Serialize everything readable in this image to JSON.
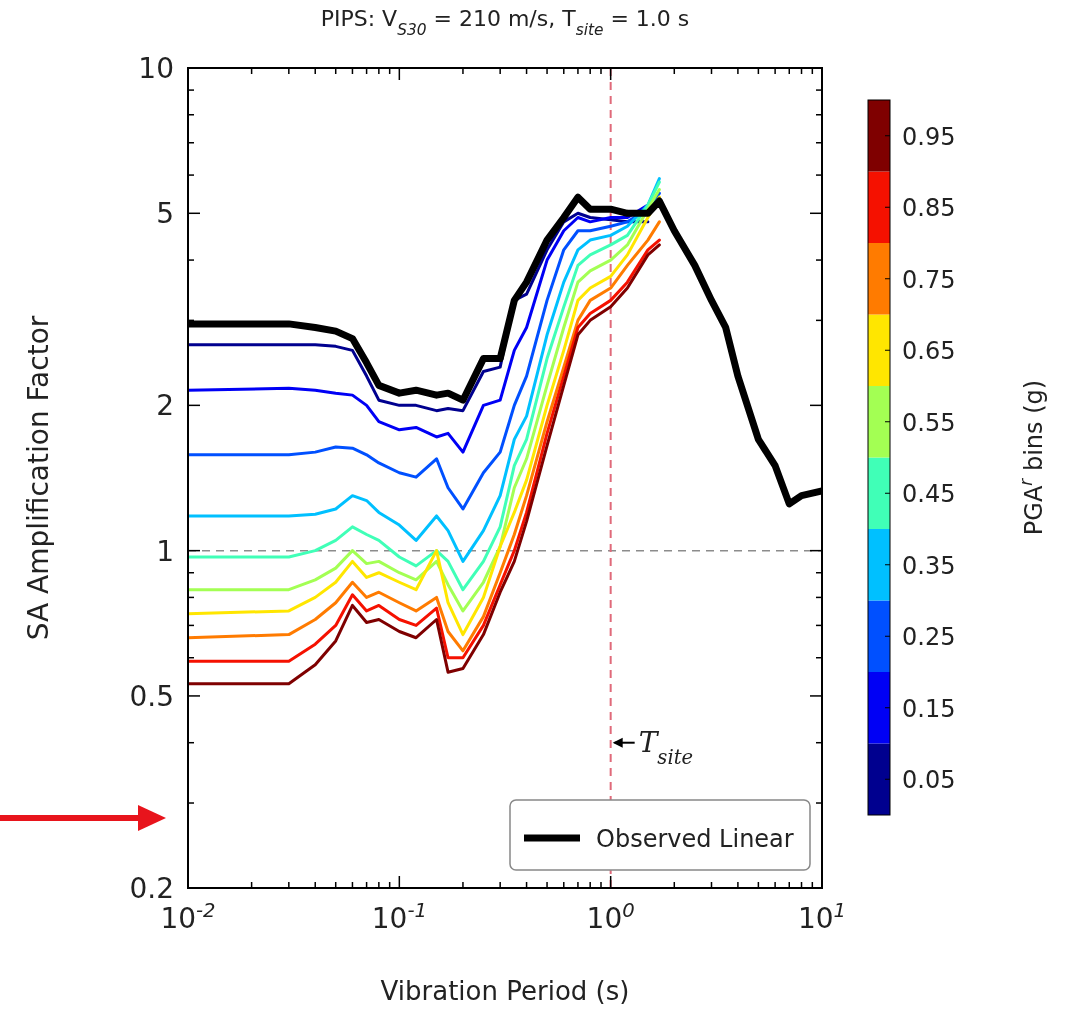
{
  "chart_data": {
    "type": "line",
    "title": "PIPS: V$_{S30}$ = 210 m/s, T$_{site}$ = 1.0 s",
    "xlabel": "Vibration Period (s)",
    "ylabel": "SA Amplification Factor",
    "clabel": "PGA$^{r}$ bins (g)",
    "log": "xy",
    "xlim": [
      0.01,
      10
    ],
    "ylim": [
      0.2,
      10
    ],
    "xticks": [
      {
        "value": 0.01,
        "label": "10$^{-2}$"
      },
      {
        "value": 0.02,
        "label": null
      },
      {
        "value": 0.03,
        "label": null
      },
      {
        "value": 0.04,
        "label": null
      },
      {
        "value": 0.05,
        "label": null
      },
      {
        "value": 0.06,
        "label": null
      },
      {
        "value": 0.07,
        "label": null
      },
      {
        "value": 0.08,
        "label": null
      },
      {
        "value": 0.09,
        "label": null
      },
      {
        "value": 0.1,
        "label": "10$^{-1}$"
      },
      {
        "value": 0.2,
        "label": null
      },
      {
        "value": 0.3,
        "label": null
      },
      {
        "value": 0.4,
        "label": null
      },
      {
        "value": 0.5,
        "label": null
      },
      {
        "value": 0.6,
        "label": null
      },
      {
        "value": 0.7,
        "label": null
      },
      {
        "value": 0.8,
        "label": null
      },
      {
        "value": 0.9,
        "label": null
      },
      {
        "value": 1,
        "label": "10$^{0}$"
      },
      {
        "value": 2,
        "label": null
      },
      {
        "value": 3,
        "label": null
      },
      {
        "value": 4,
        "label": null
      },
      {
        "value": 5,
        "label": null
      },
      {
        "value": 6,
        "label": null
      },
      {
        "value": 7,
        "label": null
      },
      {
        "value": 8,
        "label": null
      },
      {
        "value": 9,
        "label": null
      },
      {
        "value": 10,
        "label": "10$^{1}$"
      }
    ],
    "yticks": [
      0.2,
      {
        "value": 0.3,
        "label": null
      },
      {
        "value": 0.4,
        "label": null
      },
      0.5,
      {
        "value": 0.6,
        "label": null
      },
      {
        "value": 0.7,
        "label": null
      },
      {
        "value": 0.8,
        "label": null
      },
      {
        "value": 0.9,
        "label": null
      },
      1,
      2,
      {
        "value": 3,
        "label": null
      },
      {
        "value": 4,
        "label": null
      },
      5,
      {
        "value": 6,
        "label": null
      },
      {
        "value": 7,
        "label": null
      },
      {
        "value": 8,
        "label": null
      },
      {
        "value": 9,
        "label": null
      },
      10
    ],
    "clim": [
      0,
      1
    ],
    "cticks": [
      0.05,
      0.15,
      0.25,
      0.35,
      0.45,
      0.55,
      0.65,
      0.75,
      0.85,
      0.95
    ],
    "x": [
      0.01,
      0.03,
      0.04,
      0.05,
      0.06,
      0.07,
      0.08,
      0.1,
      0.12,
      0.15,
      0.17,
      0.2,
      0.25,
      0.3,
      0.35,
      0.4,
      0.5,
      0.6,
      0.7,
      0.8,
      1,
      1.2,
      1.5,
      1.7,
      2,
      2.5,
      3,
      3.5,
      4,
      5,
      6,
      7,
      8,
      10
    ],
    "series": [
      {
        "color": "#00008f",
        "values": [
          2.67,
          2.67,
          2.67,
          2.65,
          2.6,
          2.3,
          2.05,
          2.0,
          2.0,
          1.95,
          1.97,
          1.95,
          2.35,
          2.4,
          3.3,
          3.4,
          4.2,
          4.8,
          5.0,
          4.9,
          4.85,
          4.8,
          4.8,
          null,
          null,
          null,
          null,
          null,
          null,
          null,
          null,
          null,
          null,
          null
        ]
      },
      {
        "color": "#0000f5",
        "values": [
          2.15,
          2.17,
          2.15,
          2.12,
          2.1,
          2.0,
          1.85,
          1.78,
          1.8,
          1.72,
          1.75,
          1.6,
          2.0,
          2.05,
          2.6,
          2.9,
          4.0,
          4.6,
          4.9,
          4.8,
          4.9,
          4.9,
          5.2,
          null,
          null,
          null,
          null,
          null,
          null,
          null,
          null,
          null,
          null,
          null
        ]
      },
      {
        "color": "#0050ff",
        "values": [
          1.58,
          1.58,
          1.6,
          1.64,
          1.63,
          1.58,
          1.52,
          1.45,
          1.42,
          1.55,
          1.35,
          1.22,
          1.45,
          1.6,
          2.0,
          2.3,
          3.3,
          4.2,
          4.6,
          4.6,
          4.7,
          4.8,
          5.1,
          5.5,
          null,
          null,
          null,
          null,
          null,
          null,
          null,
          null,
          null,
          null
        ]
      },
      {
        "color": "#00c0ff",
        "values": [
          1.18,
          1.18,
          1.19,
          1.22,
          1.3,
          1.27,
          1.2,
          1.13,
          1.05,
          1.18,
          1.1,
          0.95,
          1.1,
          1.3,
          1.7,
          1.9,
          2.8,
          3.6,
          4.2,
          4.4,
          4.5,
          4.7,
          5.2,
          5.9,
          null,
          null,
          null,
          null,
          null,
          null,
          null,
          null,
          null,
          null
        ]
      },
      {
        "color": "#40ffb7",
        "values": [
          0.97,
          0.97,
          1.0,
          1.05,
          1.12,
          1.08,
          1.05,
          0.97,
          0.93,
          1.0,
          0.95,
          0.83,
          0.95,
          1.12,
          1.5,
          1.7,
          2.5,
          3.2,
          3.9,
          4.1,
          4.3,
          4.5,
          5.2,
          5.8,
          null,
          null,
          null,
          null,
          null,
          null,
          null,
          null,
          null,
          null
        ]
      },
      {
        "color": "#a3ff53",
        "values": [
          0.83,
          0.83,
          0.87,
          0.92,
          1.0,
          0.94,
          0.95,
          0.9,
          0.87,
          0.95,
          0.85,
          0.75,
          0.86,
          1.02,
          1.35,
          1.55,
          2.2,
          2.9,
          3.6,
          3.8,
          4.0,
          4.3,
          5.1,
          5.6,
          null,
          null,
          null,
          null,
          null,
          null,
          null,
          null,
          null,
          null
        ]
      },
      {
        "color": "#ffe600",
        "values": [
          0.74,
          0.75,
          0.8,
          0.86,
          0.95,
          0.88,
          0.9,
          0.86,
          0.83,
          1.0,
          0.78,
          0.67,
          0.8,
          1.02,
          1.2,
          1.4,
          2.0,
          2.6,
          3.3,
          3.5,
          3.7,
          4.1,
          4.9,
          5.4,
          null,
          null,
          null,
          null,
          null,
          null,
          null,
          null,
          null,
          null
        ]
      },
      {
        "color": "#ff7b00",
        "values": [
          0.66,
          0.67,
          0.72,
          0.78,
          0.86,
          0.8,
          0.82,
          0.78,
          0.75,
          0.8,
          0.68,
          0.62,
          0.73,
          0.9,
          1.08,
          1.3,
          1.85,
          2.4,
          3.0,
          3.3,
          3.5,
          3.9,
          4.4,
          4.8,
          null,
          null,
          null,
          null,
          null,
          null,
          null,
          null,
          null,
          null
        ]
      },
      {
        "color": "#f51100",
        "values": [
          0.59,
          0.59,
          0.64,
          0.7,
          0.81,
          0.75,
          0.77,
          0.72,
          0.7,
          0.76,
          0.6,
          0.6,
          0.7,
          0.85,
          1.0,
          1.2,
          1.75,
          2.3,
          2.9,
          3.1,
          3.3,
          3.6,
          4.2,
          4.4,
          null,
          null,
          null,
          null,
          null,
          null,
          null,
          null,
          null,
          null
        ]
      },
      {
        "color": "#7f0000",
        "values": [
          0.53,
          0.53,
          0.58,
          0.65,
          0.77,
          0.71,
          0.72,
          0.68,
          0.66,
          0.72,
          0.56,
          0.57,
          0.67,
          0.82,
          0.95,
          1.15,
          1.65,
          2.2,
          2.8,
          3.0,
          3.2,
          3.5,
          4.1,
          4.3,
          null,
          null,
          null,
          null,
          null,
          null,
          null,
          null,
          null,
          null
        ]
      },
      {
        "name": "Observed Linear",
        "color": "#000000",
        "values": [
          2.95,
          2.95,
          2.9,
          2.85,
          2.75,
          2.45,
          2.2,
          2.12,
          2.15,
          2.1,
          2.12,
          2.05,
          2.5,
          2.5,
          3.3,
          3.6,
          4.4,
          4.9,
          5.4,
          5.1,
          5.1,
          5.0,
          5.0,
          5.3,
          4.6,
          3.9,
          3.3,
          2.9,
          2.3,
          1.7,
          1.5,
          1.25,
          1.3,
          1.33
        ]
      }
    ],
    "ref_lines": [
      {
        "axis": "y",
        "value": 1,
        "color": "#8c8c8c",
        "line_style": "dashed"
      },
      {
        "axis": "x",
        "value": 1,
        "color": "#e06a7a",
        "line_style": "dashed"
      }
    ],
    "annotations": [
      {
        "text": "T$_{site}$",
        "x": 1,
        "y": 0.4
      }
    ],
    "legend": "bottom right",
    "grid": false,
    "marker": "none",
    "line_style": "solid"
  }
}
